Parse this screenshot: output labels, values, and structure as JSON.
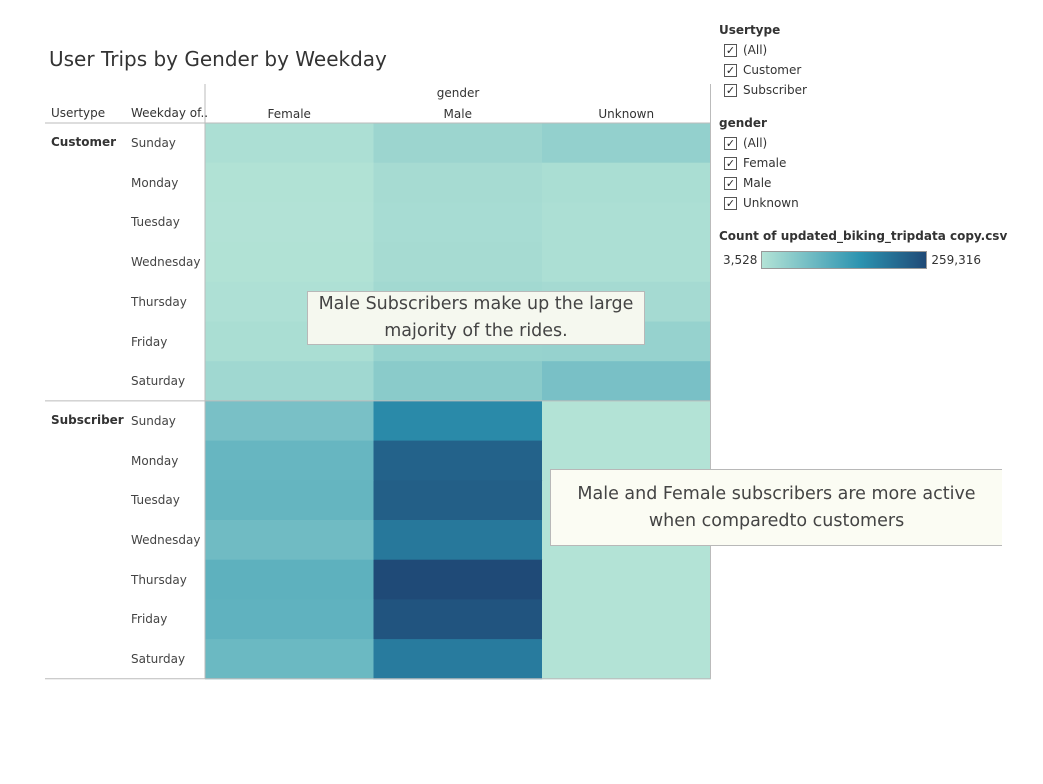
{
  "title": "User Trips by Gender by Weekday",
  "headers": {
    "usertype": "Usertype",
    "weekday": "Weekday of..",
    "gender": "gender"
  },
  "annotations": {
    "a1": "Male Subscribers make up the large\nmajority of the rides.",
    "a2": "Male and Female subscribers  are more active\nwhen comparedto customers"
  },
  "filters": {
    "usertype": {
      "title": "Usertype",
      "items": [
        {
          "label": "(All)",
          "checked": true
        },
        {
          "label": "Customer",
          "checked": true
        },
        {
          "label": "Subscriber",
          "checked": true
        }
      ]
    },
    "gender": {
      "title": "gender",
      "items": [
        {
          "label": "(All)",
          "checked": true
        },
        {
          "label": "Female",
          "checked": true
        },
        {
          "label": "Male",
          "checked": true
        },
        {
          "label": "Unknown",
          "checked": true
        }
      ]
    }
  },
  "color_legend": {
    "title": "Count of updated_biking_tripdata copy.csv",
    "min_label": "3,528",
    "max_label": "259,316",
    "color_low": "#b3e3d6",
    "color_mid": "#2c93b0",
    "color_high": "#1f4a77"
  },
  "chart_data": {
    "type": "heatmap",
    "title": "User Trips by Gender by Weekday",
    "row_groups": [
      "Customer",
      "Subscriber"
    ],
    "weekdays": [
      "Sunday",
      "Monday",
      "Tuesday",
      "Wednesday",
      "Thursday",
      "Friday",
      "Saturday"
    ],
    "columns": [
      "Female",
      "Male",
      "Unknown"
    ],
    "column_header": "gender",
    "value_range": [
      3528,
      259316
    ],
    "values": [
      [
        12000,
        30000,
        40000
      ],
      [
        6000,
        18000,
        14000
      ],
      [
        5000,
        17000,
        12000
      ],
      [
        6000,
        18000,
        12000
      ],
      [
        9000,
        23000,
        20000
      ],
      [
        14000,
        35000,
        36000
      ],
      [
        25000,
        50000,
        70000
      ]
    ],
    "values_subscriber": [
      [
        70000,
        170000,
        3528
      ],
      [
        90000,
        225000,
        3600
      ],
      [
        92000,
        230000,
        3600
      ],
      [
        80000,
        195000,
        3600
      ],
      [
        100000,
        259316,
        3700
      ],
      [
        98000,
        245000,
        3700
      ],
      [
        85000,
        190000,
        3600
      ]
    ]
  }
}
